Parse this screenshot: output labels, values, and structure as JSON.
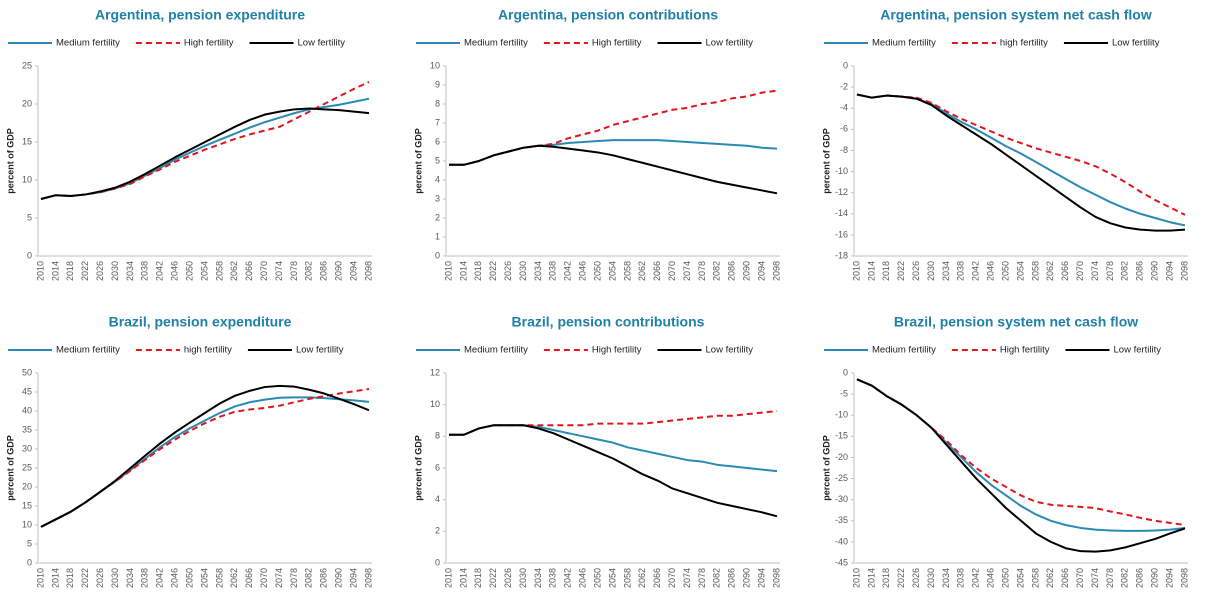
{
  "chart_data": [
    {
      "type": "line",
      "title": "Argentina, pension expenditure",
      "ylabel": "percent of GDP",
      "categories": [
        "2010",
        "2014",
        "2018",
        "2022",
        "2026",
        "2030",
        "2034",
        "2038",
        "2042",
        "2046",
        "2050",
        "2054",
        "2058",
        "2062",
        "2066",
        "2070",
        "2074",
        "2078",
        "2082",
        "2086",
        "2090",
        "2094",
        "2098"
      ],
      "ylim": [
        0,
        25
      ],
      "yticks": [
        0,
        5,
        10,
        15,
        20,
        25
      ],
      "series": [
        {
          "name": "Medium fertility",
          "color": "#2a8ab3",
          "line_style": "solid",
          "values": [
            7.5,
            8.0,
            7.9,
            8.1,
            8.4,
            8.9,
            9.6,
            10.6,
            11.6,
            12.7,
            13.6,
            14.5,
            15.3,
            16.1,
            16.9,
            17.6,
            18.2,
            18.8,
            19.3,
            19.6,
            19.9,
            20.3,
            20.7
          ]
        },
        {
          "name": "High fertility",
          "color": "#e0161d",
          "line_style": "dashed",
          "values": [
            7.5,
            8.0,
            7.9,
            8.1,
            8.4,
            8.9,
            9.5,
            10.5,
            11.4,
            12.4,
            13.2,
            14.0,
            14.7,
            15.4,
            16.0,
            16.5,
            17.0,
            18.0,
            19.0,
            20.0,
            21.0,
            22.0,
            22.9
          ]
        },
        {
          "name": "Low fertility",
          "color": "#000000",
          "line_style": "solid",
          "values": [
            7.5,
            8.0,
            7.9,
            8.1,
            8.5,
            9.0,
            9.8,
            10.8,
            11.9,
            13.0,
            14.0,
            15.0,
            16.0,
            17.0,
            17.9,
            18.6,
            19.0,
            19.3,
            19.4,
            19.3,
            19.2,
            19.0,
            18.8
          ]
        }
      ]
    },
    {
      "type": "line",
      "title": "Argentina, pension contributions",
      "ylabel": "percent of GDP",
      "categories": [
        "2010",
        "2014",
        "2018",
        "2022",
        "2026",
        "2030",
        "2034",
        "2038",
        "2042",
        "2046",
        "2050",
        "2054",
        "2058",
        "2062",
        "2066",
        "2070",
        "2074",
        "2078",
        "2082",
        "2086",
        "2090",
        "2094",
        "2098"
      ],
      "ylim": [
        0,
        10
      ],
      "yticks": [
        0,
        1,
        2,
        3,
        4,
        5,
        6,
        7,
        8,
        9,
        10
      ],
      "series": [
        {
          "name": "Medium fertility",
          "color": "#2a8ab3",
          "line_style": "solid",
          "values": [
            4.8,
            4.8,
            5.0,
            5.3,
            5.5,
            5.7,
            5.8,
            5.85,
            5.95,
            6.0,
            6.05,
            6.1,
            6.1,
            6.1,
            6.1,
            6.05,
            6.0,
            5.95,
            5.9,
            5.85,
            5.8,
            5.7,
            5.65
          ]
        },
        {
          "name": "High fertility",
          "color": "#e0161d",
          "line_style": "dashed",
          "values": [
            4.8,
            4.8,
            5.0,
            5.3,
            5.5,
            5.7,
            5.8,
            5.9,
            6.2,
            6.4,
            6.6,
            6.9,
            7.1,
            7.3,
            7.5,
            7.7,
            7.8,
            8.0,
            8.1,
            8.3,
            8.4,
            8.6,
            8.7
          ]
        },
        {
          "name": "Low fertility",
          "color": "#000000",
          "line_style": "solid",
          "values": [
            4.8,
            4.8,
            5.0,
            5.3,
            5.5,
            5.7,
            5.8,
            5.75,
            5.65,
            5.55,
            5.45,
            5.3,
            5.1,
            4.9,
            4.7,
            4.5,
            4.3,
            4.1,
            3.9,
            3.75,
            3.6,
            3.45,
            3.3
          ]
        }
      ]
    },
    {
      "type": "line",
      "title": "Argentina, pension system net cash flow",
      "ylabel": "percent of GDP",
      "categories": [
        "2010",
        "2014",
        "2018",
        "2022",
        "2026",
        "2030",
        "2034",
        "2038",
        "2042",
        "2046",
        "2050",
        "2054",
        "2058",
        "2062",
        "2066",
        "2070",
        "2074",
        "2078",
        "2082",
        "2086",
        "2090",
        "2094",
        "2098"
      ],
      "ylim": [
        -18,
        0
      ],
      "yticks": [
        -18,
        -16,
        -14,
        -12,
        -10,
        -8,
        -6,
        -4,
        -2,
        0
      ],
      "series": [
        {
          "name": "Medium fertility",
          "color": "#2a8ab3",
          "line_style": "solid",
          "values": [
            -2.7,
            -3.0,
            -2.8,
            -2.9,
            -3.1,
            -3.6,
            -4.5,
            -5.3,
            -6.0,
            -6.8,
            -7.6,
            -8.3,
            -9.1,
            -9.9,
            -10.7,
            -11.5,
            -12.2,
            -12.9,
            -13.5,
            -14.0,
            -14.4,
            -14.8,
            -15.1
          ]
        },
        {
          "name": "high fertility",
          "color": "#e0161d",
          "line_style": "dashed",
          "values": [
            -2.7,
            -3.0,
            -2.8,
            -2.9,
            -3.0,
            -3.5,
            -4.3,
            -5.0,
            -5.6,
            -6.2,
            -6.8,
            -7.3,
            -7.8,
            -8.2,
            -8.6,
            -9.0,
            -9.5,
            -10.2,
            -11.0,
            -11.9,
            -12.7,
            -13.4,
            -14.1
          ]
        },
        {
          "name": "Low fertility",
          "color": "#000000",
          "line_style": "solid",
          "values": [
            -2.7,
            -3.0,
            -2.8,
            -2.9,
            -3.1,
            -3.7,
            -4.7,
            -5.6,
            -6.5,
            -7.4,
            -8.4,
            -9.4,
            -10.4,
            -11.4,
            -12.4,
            -13.4,
            -14.3,
            -14.9,
            -15.3,
            -15.5,
            -15.6,
            -15.6,
            -15.5
          ]
        }
      ]
    },
    {
      "type": "line",
      "title": "Brazil, pension expenditure",
      "ylabel": "percent of GDP",
      "categories": [
        "2010",
        "2014",
        "2018",
        "2022",
        "2026",
        "2030",
        "2034",
        "2038",
        "2042",
        "2046",
        "2050",
        "2054",
        "2058",
        "2062",
        "2066",
        "2070",
        "2074",
        "2078",
        "2082",
        "2086",
        "2090",
        "2094",
        "2098"
      ],
      "ylim": [
        0,
        50
      ],
      "yticks": [
        0,
        5,
        10,
        15,
        20,
        25,
        30,
        35,
        40,
        45,
        50
      ],
      "series": [
        {
          "name": "Medium fertility",
          "color": "#2a8ab3",
          "line_style": "solid",
          "values": [
            9.5,
            11.5,
            13.5,
            16,
            18.8,
            21.5,
            24.5,
            27.5,
            30.5,
            33.2,
            35.5,
            37.5,
            39.5,
            41.2,
            42.3,
            43.0,
            43.5,
            43.6,
            43.6,
            43.4,
            43.1,
            42.8,
            42.4
          ]
        },
        {
          "name": "high fertility",
          "color": "#e0161d",
          "line_style": "dashed",
          "values": [
            9.5,
            11.5,
            13.5,
            16,
            18.8,
            21.5,
            24.3,
            27.2,
            30.0,
            32.5,
            34.8,
            36.8,
            38.5,
            39.8,
            40.4,
            40.8,
            41.4,
            42.3,
            43.2,
            43.9,
            44.6,
            45.2,
            45.8
          ]
        },
        {
          "name": "Low fertility",
          "color": "#000000",
          "line_style": "solid",
          "values": [
            9.5,
            11.5,
            13.5,
            16,
            18.8,
            21.7,
            25,
            28.3,
            31.5,
            34.4,
            37,
            39.5,
            42,
            44,
            45.3,
            46.3,
            46.6,
            46.4,
            45.6,
            44.6,
            43.2,
            41.8,
            40.2
          ]
        }
      ]
    },
    {
      "type": "line",
      "title": "Brazil, pension contributions",
      "ylabel": "percent of GDP",
      "categories": [
        "2010",
        "2014",
        "2018",
        "2022",
        "2026",
        "2030",
        "2034",
        "2038",
        "2042",
        "2046",
        "2050",
        "2054",
        "2058",
        "2062",
        "2066",
        "2070",
        "2074",
        "2078",
        "2082",
        "2086",
        "2090",
        "2094",
        "2098"
      ],
      "ylim": [
        0,
        12
      ],
      "yticks": [
        0,
        2,
        4,
        6,
        8,
        10,
        12
      ],
      "series": [
        {
          "name": "Medium fertility",
          "color": "#2a8ab3",
          "line_style": "solid",
          "values": [
            8.1,
            8.1,
            8.5,
            8.7,
            8.7,
            8.7,
            8.6,
            8.4,
            8.2,
            8.0,
            7.8,
            7.6,
            7.3,
            7.1,
            6.9,
            6.7,
            6.5,
            6.4,
            6.2,
            6.1,
            6.0,
            5.9,
            5.8
          ]
        },
        {
          "name": "High fertility",
          "color": "#e0161d",
          "line_style": "dashed",
          "values": [
            8.1,
            8.1,
            8.5,
            8.7,
            8.7,
            8.7,
            8.7,
            8.7,
            8.7,
            8.7,
            8.8,
            8.8,
            8.8,
            8.8,
            8.9,
            9.0,
            9.1,
            9.2,
            9.3,
            9.3,
            9.4,
            9.5,
            9.6
          ]
        },
        {
          "name": "Low fertility",
          "color": "#000000",
          "line_style": "solid",
          "values": [
            8.1,
            8.1,
            8.5,
            8.7,
            8.7,
            8.7,
            8.5,
            8.2,
            7.8,
            7.4,
            7.0,
            6.6,
            6.1,
            5.6,
            5.2,
            4.7,
            4.4,
            4.1,
            3.8,
            3.6,
            3.4,
            3.2,
            2.95
          ]
        }
      ]
    },
    {
      "type": "line",
      "title": "Brazil, pension system net cash flow",
      "ylabel": "percent of GDP",
      "categories": [
        "2010",
        "2014",
        "2018",
        "2022",
        "2026",
        "2030",
        "2034",
        "2038",
        "2042",
        "2046",
        "2050",
        "2054",
        "2058",
        "2062",
        "2066",
        "2070",
        "2074",
        "2078",
        "2082",
        "2086",
        "2090",
        "2094",
        "2098"
      ],
      "ylim": [
        -45,
        0
      ],
      "yticks": [
        -45,
        -40,
        -35,
        -30,
        -25,
        -20,
        -15,
        -10,
        -5,
        0
      ],
      "series": [
        {
          "name": "Medium fertility",
          "color": "#2a8ab3",
          "line_style": "solid",
          "values": [
            -1.5,
            -3,
            -5.5,
            -7.5,
            -10,
            -13,
            -16.5,
            -20,
            -23.5,
            -26.5,
            -29,
            -31.5,
            -33.5,
            -35,
            -36,
            -36.7,
            -37.1,
            -37.3,
            -37.4,
            -37.4,
            -37.3,
            -37.1,
            -36.7
          ]
        },
        {
          "name": "High fertility",
          "color": "#e0161d",
          "line_style": "dashed",
          "values": [
            -1.5,
            -3,
            -5.5,
            -7.5,
            -10,
            -13,
            -16,
            -19.5,
            -22.5,
            -25,
            -27,
            -29,
            -30.5,
            -31.2,
            -31.5,
            -31.7,
            -32,
            -32.8,
            -33.5,
            -34.3,
            -35,
            -35.5,
            -36
          ]
        },
        {
          "name": "Low fertility",
          "color": "#000000",
          "line_style": "solid",
          "values": [
            -1.5,
            -3,
            -5.5,
            -7.5,
            -10,
            -13,
            -17,
            -21,
            -25,
            -28.5,
            -32,
            -35,
            -38,
            -40,
            -41.5,
            -42.2,
            -42.3,
            -42.0,
            -41.3,
            -40.3,
            -39.3,
            -38.0,
            -36.8
          ]
        }
      ]
    }
  ]
}
